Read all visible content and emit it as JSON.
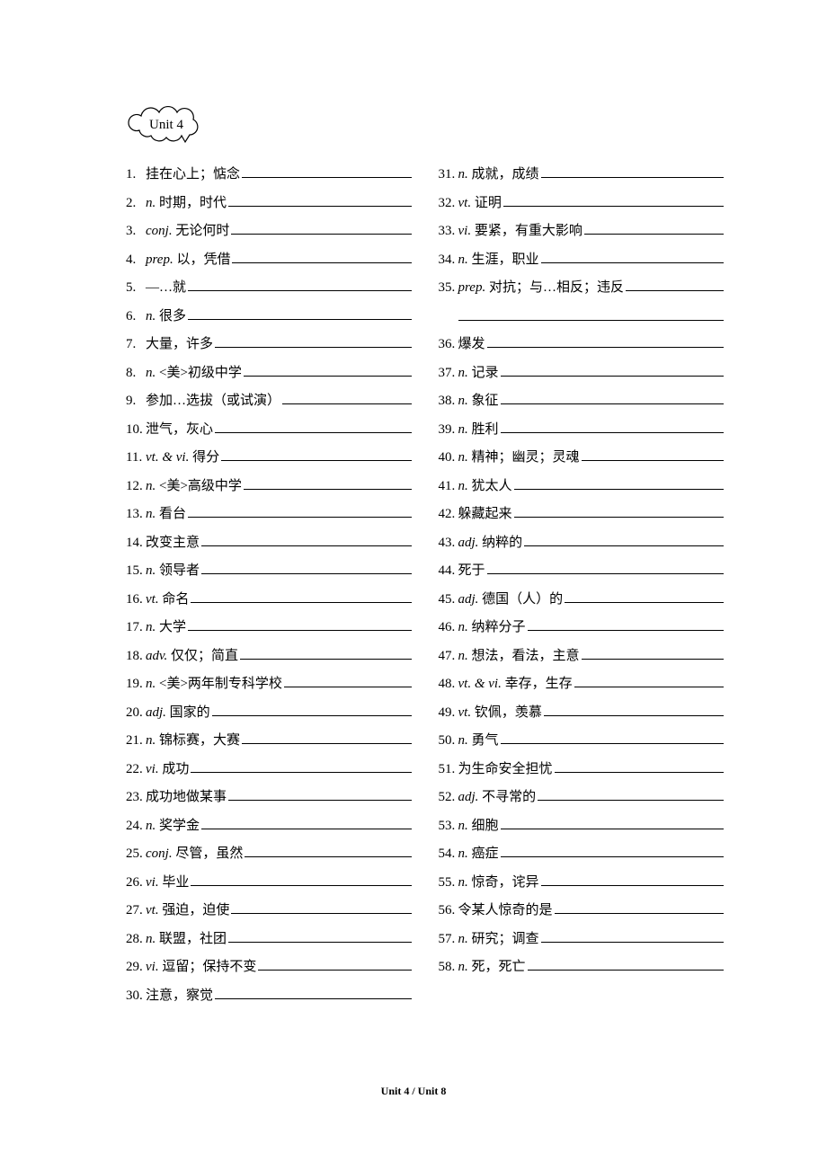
{
  "unit_label": "Unit 4",
  "footer": "Unit 4 / Unit 8",
  "left": [
    {
      "n": "1.",
      "pos": "",
      "zh": "挂在心上；惦念"
    },
    {
      "n": "2.",
      "pos": "n.",
      "zh": "时期，时代"
    },
    {
      "n": "3.",
      "pos": "conj.",
      "zh": "无论何时"
    },
    {
      "n": "4.",
      "pos": "prep.",
      "zh": "以，凭借"
    },
    {
      "n": "5.",
      "pos": "",
      "zh": "—…就"
    },
    {
      "n": "6.",
      "pos": "n.",
      "zh": "很多"
    },
    {
      "n": "7.",
      "pos": "",
      "zh": "大量，许多"
    },
    {
      "n": "8.",
      "pos": "n.",
      "zh": "<美>初级中学"
    },
    {
      "n": "9.",
      "pos": "",
      "zh": "参加…选拔（或试演）"
    },
    {
      "n": "10.",
      "pos": "",
      "zh": "泄气，灰心"
    },
    {
      "n": "11.",
      "pos": "vt. & vi.",
      "zh": "得分"
    },
    {
      "n": "12.",
      "pos": "n.",
      "zh": "<美>高级中学"
    },
    {
      "n": "13.",
      "pos": "n.",
      "zh": "看台"
    },
    {
      "n": "14.",
      "pos": "",
      "zh": "改变主意"
    },
    {
      "n": "15.",
      "pos": "n.",
      "zh": "领导者"
    },
    {
      "n": "16.",
      "pos": "vt.",
      "zh": "命名"
    },
    {
      "n": "17.",
      "pos": "n.",
      "zh": "大学"
    },
    {
      "n": "18.",
      "pos": "adv.",
      "zh": "仅仅；简直"
    },
    {
      "n": "19.",
      "pos": "n.",
      "zh": "<美>两年制专科学校"
    },
    {
      "n": "20.",
      "pos": "adj.",
      "zh": "国家的"
    },
    {
      "n": "21.",
      "pos": "n.",
      "zh": "锦标赛，大赛"
    },
    {
      "n": "22.",
      "pos": "vi.",
      "zh": "成功"
    },
    {
      "n": "23.",
      "pos": "",
      "zh": "成功地做某事"
    },
    {
      "n": "24.",
      "pos": "n.",
      "zh": "奖学金"
    },
    {
      "n": "25.",
      "pos": "conj.",
      "zh": "尽管，虽然"
    },
    {
      "n": "26.",
      "pos": "vi.",
      "zh": "毕业"
    },
    {
      "n": "27.",
      "pos": "vt.",
      "zh": "强迫，迫使"
    },
    {
      "n": "28.",
      "pos": "n.",
      "zh": "联盟，社团"
    },
    {
      "n": "29.",
      "pos": "vi.",
      "zh": "逗留；保持不变"
    },
    {
      "n": "30.",
      "pos": "",
      "zh": "注意，察觉"
    }
  ],
  "right": [
    {
      "n": "31.",
      "pos": "n.",
      "zh": "成就，成绩"
    },
    {
      "n": "32.",
      "pos": "vt.",
      "zh": "证明"
    },
    {
      "n": "33.",
      "pos": "vi.",
      "zh": "要紧，有重大影响"
    },
    {
      "n": "34.",
      "pos": "n.",
      "zh": "生涯，职业"
    },
    {
      "n": "35.",
      "pos": "prep.",
      "zh": "对抗；与…相反；违反",
      "cont": true
    },
    {
      "n": "36.",
      "pos": "",
      "zh": "爆发"
    },
    {
      "n": "37.",
      "pos": "n.",
      "zh": "记录"
    },
    {
      "n": "38.",
      "pos": "n.",
      "zh": "象征"
    },
    {
      "n": "39.",
      "pos": "n.",
      "zh": "胜利"
    },
    {
      "n": "40.",
      "pos": "n.",
      "zh": "精神；幽灵；灵魂"
    },
    {
      "n": "41.",
      "pos": "n.",
      "zh": "犹太人"
    },
    {
      "n": "42.",
      "pos": "",
      "zh": "躲藏起来"
    },
    {
      "n": "43.",
      "pos": "adj.",
      "zh": "纳粹的"
    },
    {
      "n": "44.",
      "pos": "",
      "zh": "死于"
    },
    {
      "n": "45.",
      "pos": "adj.",
      "zh": "德国（人）的"
    },
    {
      "n": "46.",
      "pos": "n.",
      "zh": "纳粹分子"
    },
    {
      "n": "47.",
      "pos": "n.",
      "zh": "想法，看法，主意"
    },
    {
      "n": "48.",
      "pos": "vt. & vi.",
      "zh": "幸存，生存"
    },
    {
      "n": "49.",
      "pos": "vt.",
      "zh": "钦佩，羡慕"
    },
    {
      "n": "50.",
      "pos": "n.",
      "zh": "勇气"
    },
    {
      "n": "51.",
      "pos": "",
      "zh": "为生命安全担忧"
    },
    {
      "n": "52.",
      "pos": "adj.",
      "zh": "不寻常的"
    },
    {
      "n": "53.",
      "pos": "n.",
      "zh": "细胞"
    },
    {
      "n": "54.",
      "pos": "n.",
      "zh": "癌症"
    },
    {
      "n": "55.",
      "pos": "n.",
      "zh": "惊奇，诧异"
    },
    {
      "n": "56.",
      "pos": "",
      "zh": "令某人惊奇的是"
    },
    {
      "n": "57.",
      "pos": "n.",
      "zh": "研究；调查"
    },
    {
      "n": "58.",
      "pos": "n.",
      "zh": "死，死亡"
    }
  ]
}
